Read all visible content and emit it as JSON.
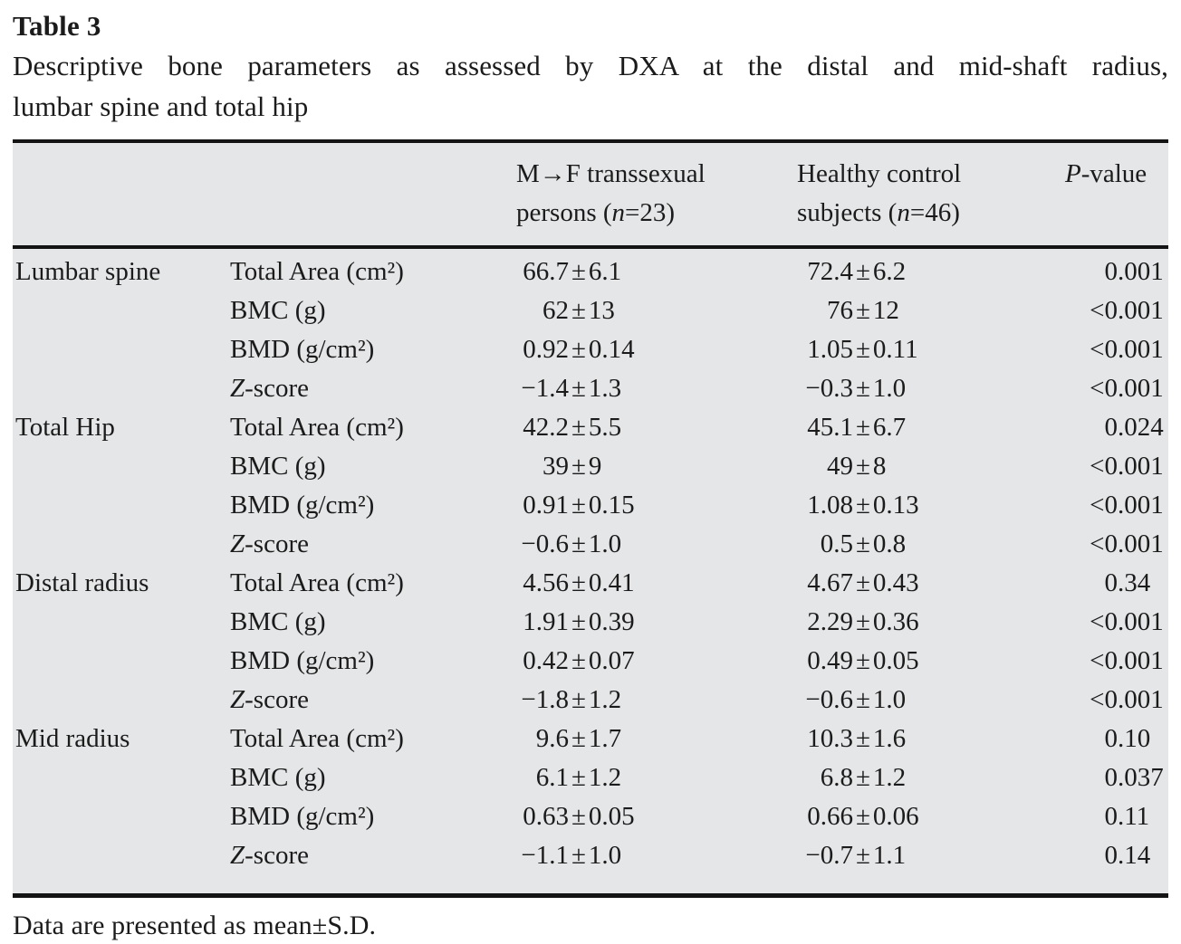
{
  "title": "Table 3",
  "caption_line1": "Descriptive bone parameters as assessed by DXA at the distal and mid-shaft radius,",
  "caption_line2": "lumbar spine and total hip",
  "columns": {
    "transsexual": {
      "line1": "M→F transsexual",
      "line2_pre": "persons (",
      "line2_var": "n",
      "line2_post": "=23)"
    },
    "control": {
      "line1": "Healthy control",
      "line2_pre": "subjects (",
      "line2_var": "n",
      "line2_post": "=46)"
    },
    "pvalue": {
      "var": "P",
      "post": "-value"
    }
  },
  "rows": [
    {
      "group": "Lumbar spine",
      "param_italic": "",
      "param": "Total Area (cm²)",
      "transsexual": "66.7±6.1",
      "control": "72.4±6.2",
      "p": "0.001"
    },
    {
      "group": "",
      "param_italic": "",
      "param": "BMC (g)",
      "transsexual": "62±13",
      "control": "76±12",
      "p": "<0.001"
    },
    {
      "group": "",
      "param_italic": "",
      "param": "BMD (g/cm²)",
      "transsexual": "0.92±0.14",
      "control": "1.05±0.11",
      "p": "<0.001"
    },
    {
      "group": "",
      "param_italic": "Z",
      "param": "-score",
      "transsexual": "−1.4±1.3",
      "control": "−0.3±1.0",
      "p": "<0.001"
    },
    {
      "group": "Total Hip",
      "param_italic": "",
      "param": "Total Area (cm²)",
      "transsexual": "42.2±5.5",
      "control": "45.1±6.7",
      "p": "0.024"
    },
    {
      "group": "",
      "param_italic": "",
      "param": "BMC (g)",
      "transsexual": "39±9",
      "control": "49±8",
      "p": "<0.001"
    },
    {
      "group": "",
      "param_italic": "",
      "param": "BMD (g/cm²)",
      "transsexual": "0.91±0.15",
      "control": "1.08±0.13",
      "p": "<0.001"
    },
    {
      "group": "",
      "param_italic": "Z",
      "param": "-score",
      "transsexual": "−0.6±1.0",
      "control": "0.5±0.8",
      "p": "<0.001"
    },
    {
      "group": "Distal radius",
      "param_italic": "",
      "param": "Total Area (cm²)",
      "transsexual": "4.56±0.41",
      "control": "4.67±0.43",
      "p": "0.34"
    },
    {
      "group": "",
      "param_italic": "",
      "param": "BMC (g)",
      "transsexual": "1.91±0.39",
      "control": "2.29±0.36",
      "p": "<0.001"
    },
    {
      "group": "",
      "param_italic": "",
      "param": "BMD (g/cm²)",
      "transsexual": "0.42±0.07",
      "control": "0.49±0.05",
      "p": "<0.001"
    },
    {
      "group": "",
      "param_italic": "Z",
      "param": "-score",
      "transsexual": "−1.8±1.2",
      "control": "−0.6±1.0",
      "p": "<0.001"
    },
    {
      "group": "Mid radius",
      "param_italic": "",
      "param": "Total Area (cm²)",
      "transsexual": "9.6±1.7",
      "control": "10.3±1.6",
      "p": "0.10"
    },
    {
      "group": "",
      "param_italic": "",
      "param": "BMC (g)",
      "transsexual": "6.1±1.2",
      "control": "6.8±1.2",
      "p": "0.037"
    },
    {
      "group": "",
      "param_italic": "",
      "param": "BMD (g/cm²)",
      "transsexual": "0.63±0.05",
      "control": "0.66±0.06",
      "p": "0.11"
    },
    {
      "group": "",
      "param_italic": "Z",
      "param": "-score",
      "transsexual": "−1.1±1.0",
      "control": "−0.7±1.1",
      "p": "0.14"
    }
  ],
  "footnote": "Data are presented as mean±S.D.",
  "colors": {
    "table_background": "#e5e6e7",
    "rule": "#141414",
    "text": "#1b1b1b",
    "page_background": "#ffffff"
  }
}
